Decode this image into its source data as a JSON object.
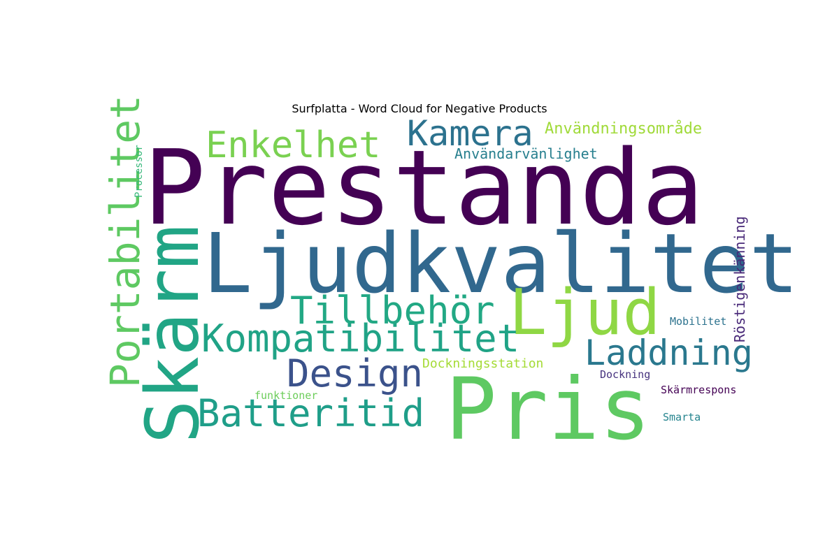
{
  "chart_data": {
    "type": "wordcloud",
    "title": "Surfplatta - Word Cloud for Negative Products",
    "background": "#ffffff",
    "colormap": "viridis",
    "words": [
      {
        "text": "Prestanda",
        "color": "#440154"
      },
      {
        "text": "Ljudkvalitet",
        "color": "#31688e"
      },
      {
        "text": "Pris",
        "color": "#5ec962"
      },
      {
        "text": "Skärm",
        "color": "#21a585"
      },
      {
        "text": "Ljud",
        "color": "#8fd744"
      },
      {
        "text": "Portabilitet",
        "color": "#5ec962"
      },
      {
        "text": "Kompatibilitet",
        "color": "#20a386"
      },
      {
        "text": "Batteritid",
        "color": "#1f9e89"
      },
      {
        "text": "Tillbehör",
        "color": "#22a884"
      },
      {
        "text": "Laddning",
        "color": "#2a788e"
      },
      {
        "text": "Design",
        "color": "#3b528b"
      },
      {
        "text": "Enkelhet",
        "color": "#7ad151"
      },
      {
        "text": "Kamera",
        "color": "#2c728e"
      },
      {
        "text": "Användningsområde",
        "color": "#a0da39"
      },
      {
        "text": "Användarvänlighet",
        "color": "#277f8e"
      },
      {
        "text": "Röstigenkänning",
        "color": "#482878"
      },
      {
        "text": "Dockningsstation",
        "color": "#a5db36"
      },
      {
        "text": "Mobilitet",
        "color": "#2c728e"
      },
      {
        "text": "Dockning",
        "color": "#46327e"
      },
      {
        "text": "Skärmrespons",
        "color": "#440154"
      },
      {
        "text": "Smarta",
        "color": "#25848e"
      },
      {
        "text": "funktioner",
        "color": "#6ccd5a"
      },
      {
        "text": "Processor",
        "color": "#35b779"
      }
    ]
  }
}
